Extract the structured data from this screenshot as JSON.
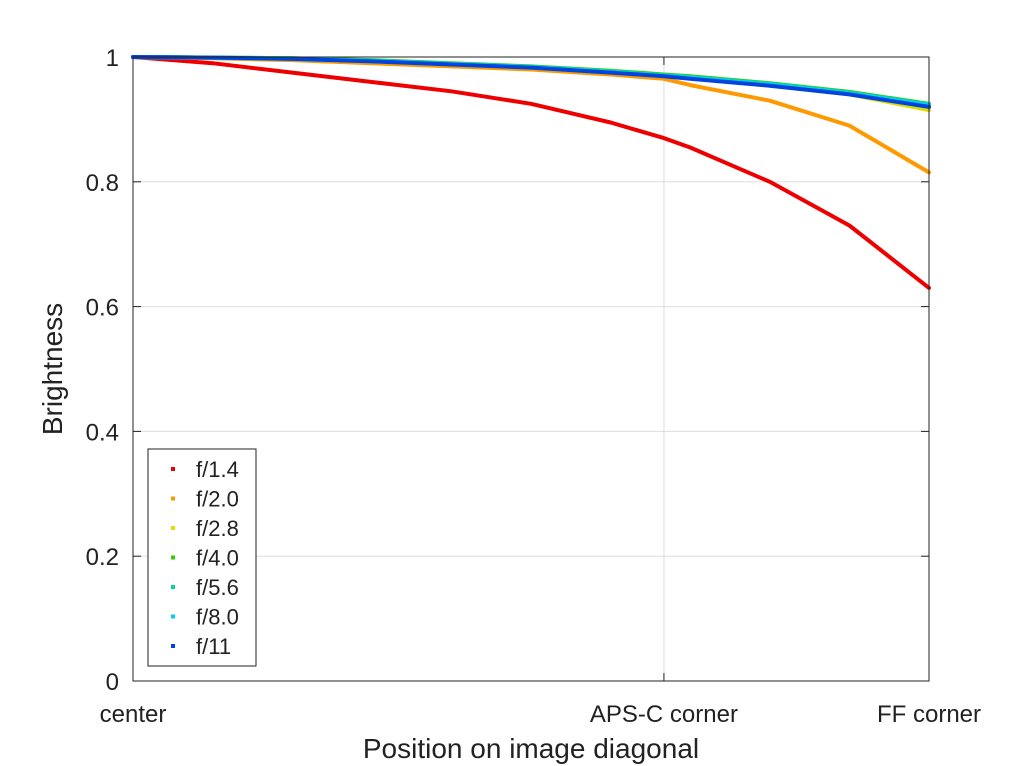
{
  "chart_data": {
    "type": "line",
    "xlabel": "Position on image diagonal",
    "ylabel": "Brightness",
    "xlim": [
      0,
      1
    ],
    "ylim": [
      0,
      1
    ],
    "grid": true,
    "legend_placement": "bottom-left",
    "x_ticks": [
      {
        "value": 0,
        "label": "center"
      },
      {
        "value": 0.667,
        "label": "APS-C corner"
      },
      {
        "value": 1,
        "label": "FF corner"
      }
    ],
    "y_ticks": [
      {
        "value": 0,
        "label": "0"
      },
      {
        "value": 0.2,
        "label": "0.2"
      },
      {
        "value": 0.4,
        "label": "0.4"
      },
      {
        "value": 0.6,
        "label": "0.6"
      },
      {
        "value": 0.8,
        "label": "0.8"
      },
      {
        "value": 1,
        "label": "1"
      }
    ],
    "x": [
      0,
      0.1,
      0.2,
      0.3,
      0.4,
      0.5,
      0.6,
      0.667,
      0.7,
      0.8,
      0.9,
      1.0
    ],
    "series": [
      {
        "name": "f/1.4",
        "color": "#ee0000",
        "values": [
          1.0,
          0.99,
          0.975,
          0.96,
          0.945,
          0.925,
          0.895,
          0.87,
          0.855,
          0.8,
          0.73,
          0.63
        ]
      },
      {
        "name": "f/2.0",
        "color": "#ff9900",
        "values": [
          1.0,
          0.998,
          0.995,
          0.99,
          0.985,
          0.98,
          0.972,
          0.965,
          0.955,
          0.93,
          0.89,
          0.815
        ]
      },
      {
        "name": "f/2.8",
        "color": "#dddd00",
        "values": [
          1.0,
          0.999,
          0.997,
          0.993,
          0.988,
          0.983,
          0.975,
          0.97,
          0.966,
          0.955,
          0.94,
          0.915
        ]
      },
      {
        "name": "f/4.0",
        "color": "#33cc00",
        "values": [
          1.0,
          0.999,
          0.998,
          0.995,
          0.99,
          0.985,
          0.978,
          0.972,
          0.969,
          0.958,
          0.944,
          0.925
        ]
      },
      {
        "name": "f/5.6",
        "color": "#00dd88",
        "values": [
          1.0,
          0.999,
          0.998,
          0.994,
          0.989,
          0.984,
          0.977,
          0.971,
          0.968,
          0.957,
          0.943,
          0.924
        ]
      },
      {
        "name": "f/8.0",
        "color": "#00ccff",
        "values": [
          1.0,
          0.999,
          0.997,
          0.994,
          0.989,
          0.984,
          0.976,
          0.97,
          0.967,
          0.956,
          0.942,
          0.923
        ]
      },
      {
        "name": "f/11",
        "color": "#0044dd",
        "values": [
          1.0,
          0.999,
          0.997,
          0.993,
          0.988,
          0.983,
          0.975,
          0.969,
          0.965,
          0.954,
          0.94,
          0.92
        ]
      }
    ]
  }
}
